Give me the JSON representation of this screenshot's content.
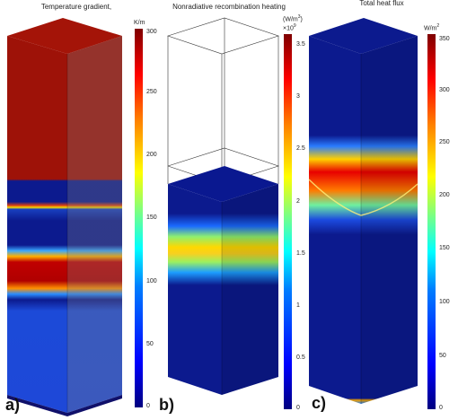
{
  "panels": [
    {
      "label": "a)",
      "title": "Temperature gradient,",
      "colorbar": {
        "unit": "K/m",
        "exponent": "",
        "ticks": [
          "300",
          "250",
          "200",
          "150",
          "100",
          "50",
          "0"
        ]
      }
    },
    {
      "label": "b)",
      "title": "Nonradiative recombination heating",
      "colorbar": {
        "unit": "(W/m",
        "unit_sup": "3",
        "unit_after": ")",
        "exponent": "×10",
        "exponent_sup": "9",
        "ticks": [
          "3.5",
          "3",
          "2.5",
          "2",
          "1.5",
          "1",
          "0.5",
          "0"
        ]
      }
    },
    {
      "label": "c)",
      "title": "Total heat flux",
      "colorbar": {
        "unit": "W/m",
        "unit_sup": "2",
        "ticks": [
          "350",
          "300",
          "250",
          "200",
          "150",
          "100",
          "50",
          "0"
        ]
      }
    }
  ],
  "colors": {
    "dark_red": "#a10f0a",
    "navy": "#0a1a8c",
    "red": "#d40000",
    "yellow": "#f5e200"
  }
}
